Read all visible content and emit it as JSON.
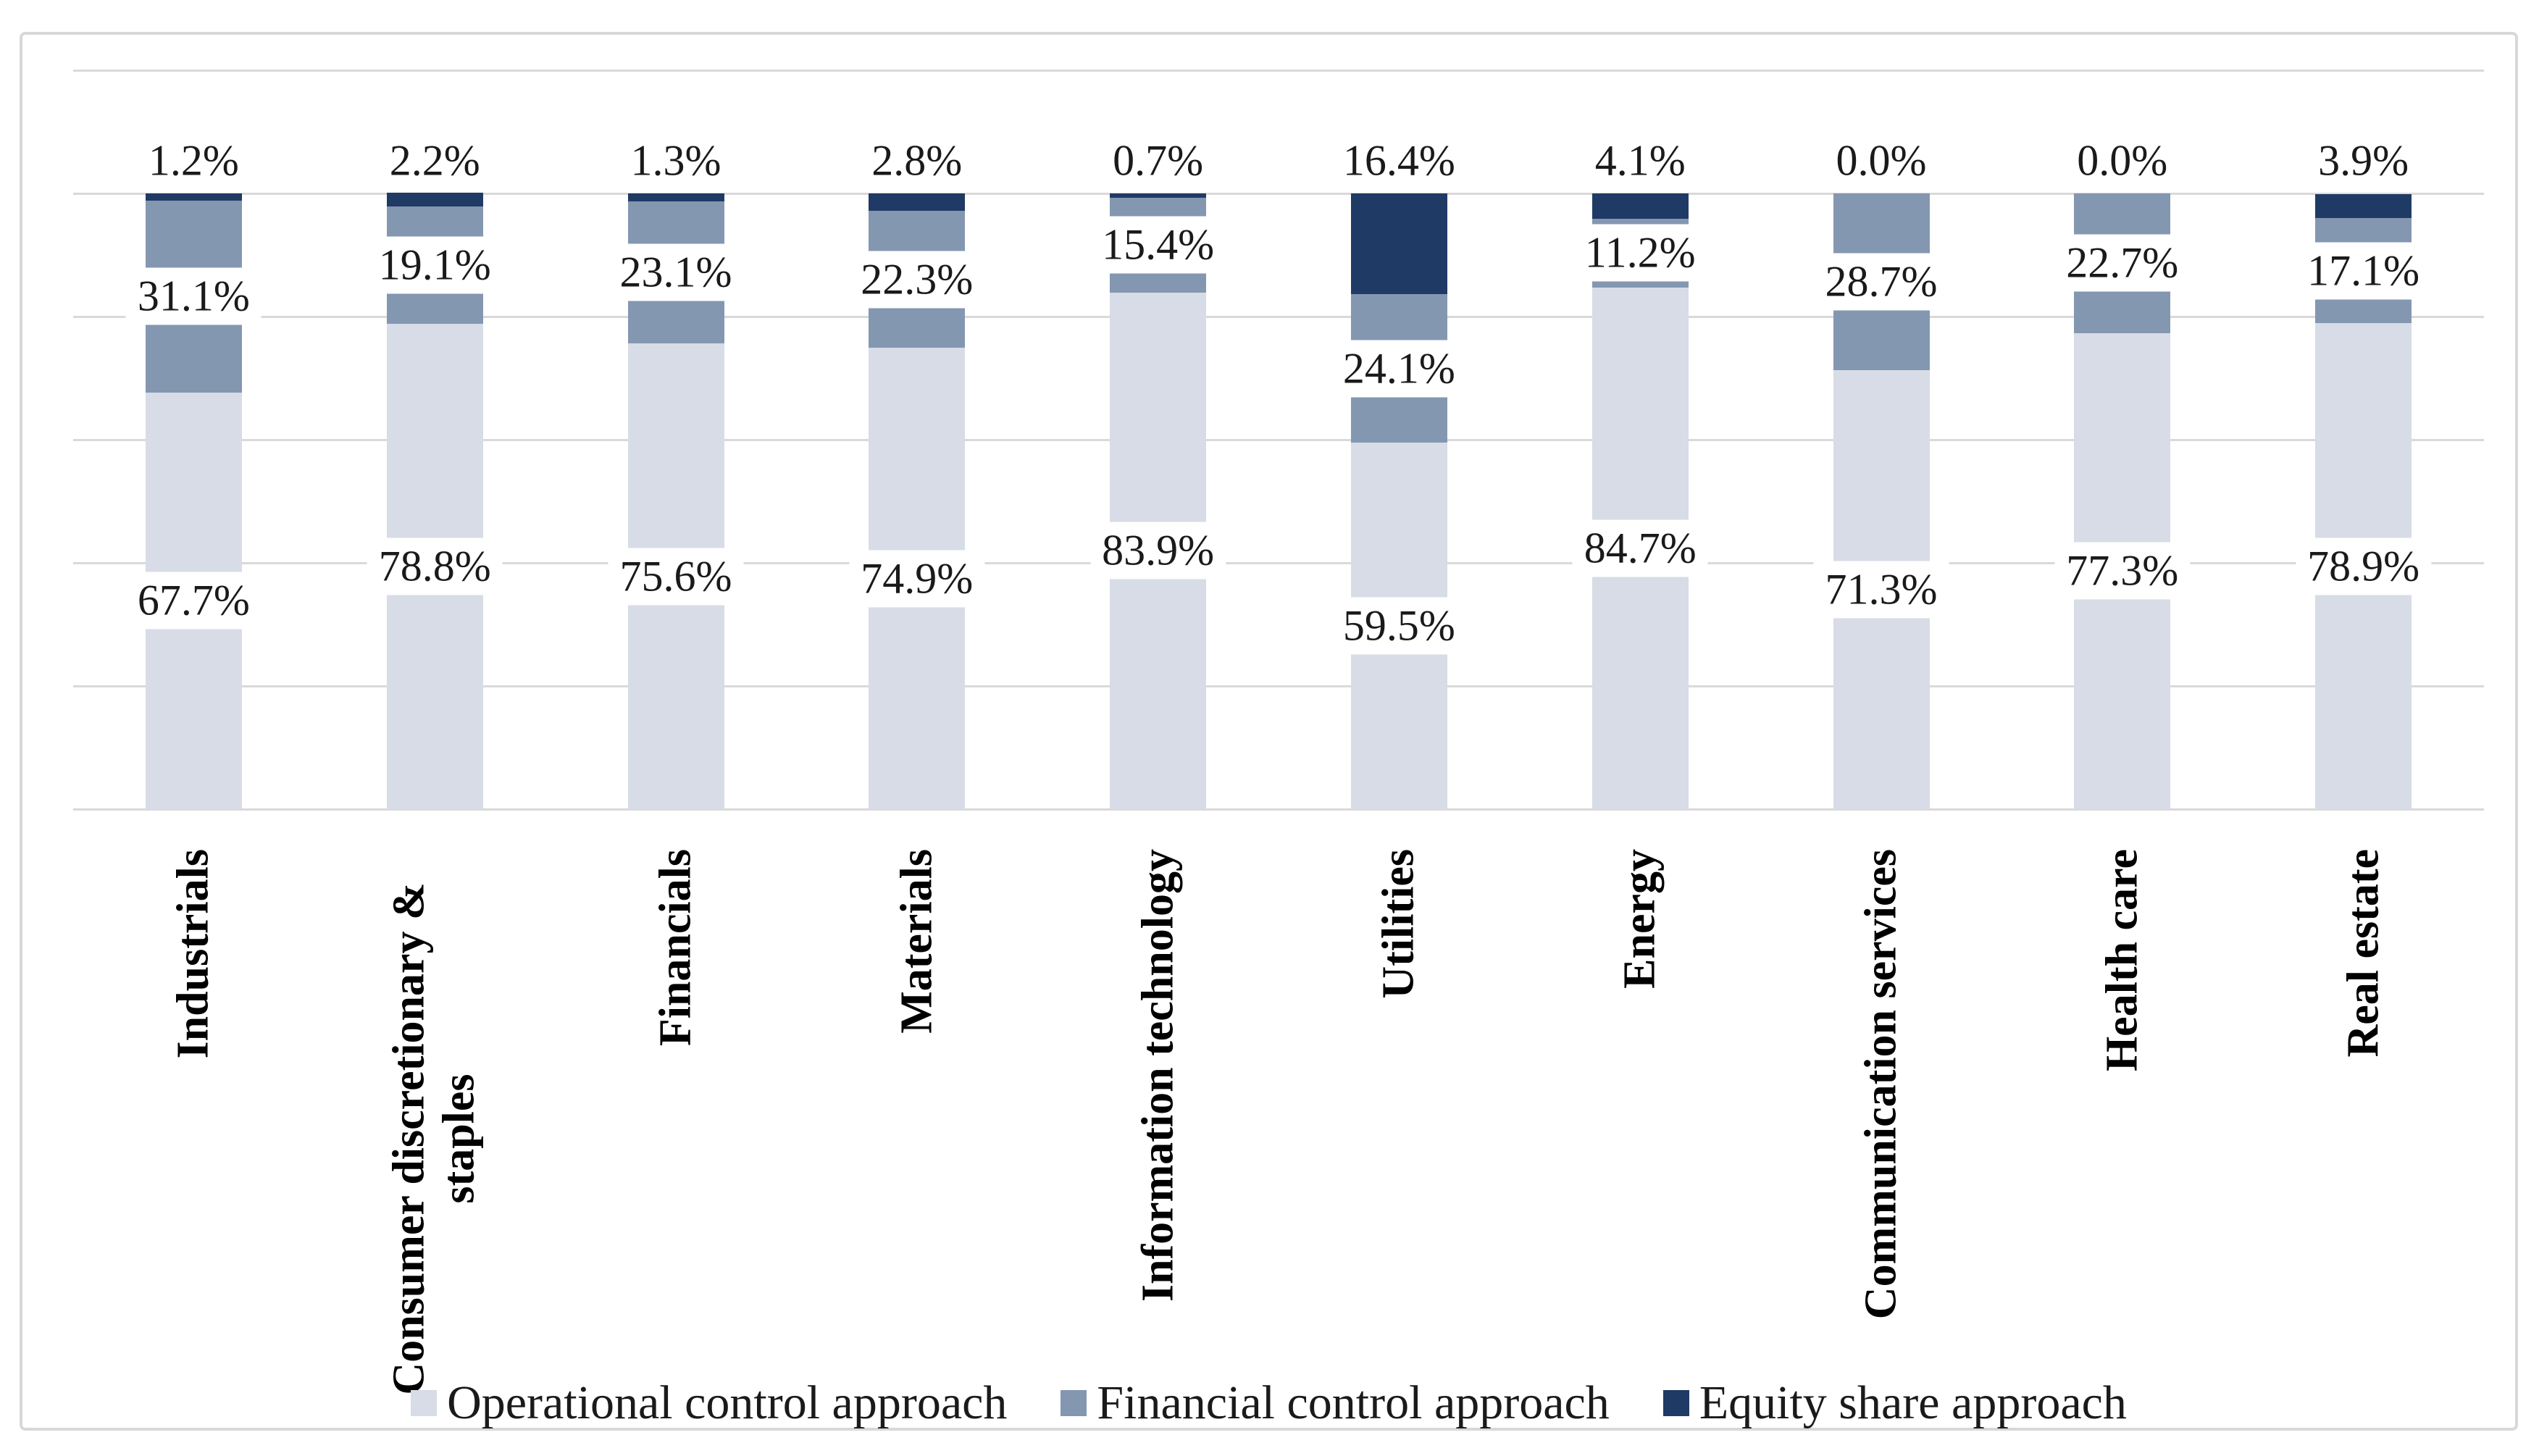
{
  "figure": {
    "kind": "stacked-column-figure",
    "background": "#ffffff",
    "frame_border_color": "#D8D8D8"
  },
  "chart_data": {
    "type": "bar",
    "subtype": "stacked-100-percent",
    "title": "",
    "xlabel": "",
    "ylabel": "",
    "ylim": [
      0,
      120
    ],
    "grid_step": 20,
    "grid": true,
    "grid_color": "#D9D9D9",
    "y_axis_labels_visible": false,
    "legend_position": "bottom",
    "categories": [
      "Industrials",
      "Consumer discretionary & staples",
      "Financials",
      "Materials",
      "Information technology",
      "Utilities",
      "Energy",
      "Communication services",
      "Health care",
      "Real estate"
    ],
    "series": [
      {
        "name": "Operational control approach",
        "color": "#D7DCE6",
        "values": [
          67.7,
          78.8,
          75.6,
          74.9,
          83.9,
          59.5,
          84.7,
          71.3,
          77.3,
          78.9
        ],
        "labels": [
          "67.7%",
          "78.8%",
          "75.6%",
          "74.9%",
          "83.9%",
          "59.5%",
          "84.7%",
          "71.3%",
          "77.3%",
          "78.9%"
        ]
      },
      {
        "name": "Financial control approach",
        "color": "#8497B1",
        "values": [
          31.1,
          19.1,
          23.1,
          22.3,
          15.4,
          24.1,
          11.2,
          28.7,
          22.7,
          17.1
        ],
        "labels": [
          "31.1%",
          "19.1%",
          "23.1%",
          "22.3%",
          "15.4%",
          "24.1%",
          "11.2%",
          "28.7%",
          "22.7%",
          "17.1%"
        ]
      },
      {
        "name": "Equity share approach",
        "color": "#203A66",
        "values": [
          1.2,
          2.2,
          1.3,
          2.8,
          0.7,
          16.4,
          4.1,
          0.0,
          0.0,
          3.9
        ],
        "labels": [
          "1.2%",
          "2.2%",
          "1.3%",
          "2.8%",
          "0.7%",
          "16.4%",
          "4.1%",
          "0.0%",
          "0.0%",
          "3.9%"
        ]
      }
    ]
  }
}
